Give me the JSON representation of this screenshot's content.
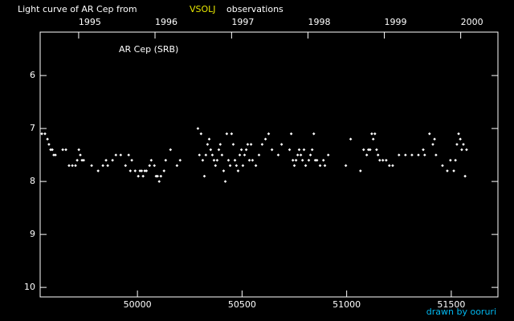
{
  "chart_data": {
    "type": "scatter",
    "title": "Light curve of AR Cep from",
    "title_source": "VSOLJ",
    "title_suffix": "observations",
    "annotation": "AR Cep (SRB)",
    "credit": "drawn by ooruri",
    "color": "#ffffff",
    "source_color": "#e8e800",
    "credit_color": "#00b8f0",
    "xlim": [
      49535,
      51723
    ],
    "xticks": [
      50000,
      50500,
      51000,
      51500
    ],
    "x2ticks": [
      {
        "value": 49719,
        "label": "1995"
      },
      {
        "value": 50084,
        "label": "1996"
      },
      {
        "value": 50450,
        "label": "1997"
      },
      {
        "value": 50815,
        "label": "1998"
      },
      {
        "value": 51180,
        "label": "1999"
      },
      {
        "value": 51545,
        "label": "2000"
      }
    ],
    "ylim": [
      10.18,
      5.18
    ],
    "yticks": [
      6,
      7,
      8,
      9,
      10
    ],
    "x": [
      49543,
      49558,
      49570,
      49577,
      49585,
      49593,
      49600,
      49608,
      49643,
      49658,
      49673,
      49689,
      49704,
      49712,
      49720,
      49727,
      49735,
      49743,
      49781,
      49812,
      49835,
      49850,
      49858,
      49881,
      49897,
      49920,
      49943,
      49958,
      49966,
      49973,
      49989,
      50004,
      50012,
      50020,
      50027,
      50035,
      50043,
      50058,
      50066,
      50081,
      50089,
      50096,
      50104,
      50112,
      50127,
      50135,
      50158,
      50189,
      50204,
      50289,
      50296,
      50304,
      50312,
      50320,
      50327,
      50335,
      50343,
      50350,
      50358,
      50366,
      50373,
      50381,
      50389,
      50396,
      50404,
      50412,
      50420,
      50427,
      50435,
      50443,
      50450,
      50458,
      50466,
      50473,
      50481,
      50489,
      50497,
      50504,
      50512,
      50520,
      50527,
      50535,
      50543,
      50550,
      50566,
      50581,
      50596,
      50612,
      50627,
      50643,
      50673,
      50689,
      50735,
      50727,
      50743,
      50750,
      50758,
      50766,
      50773,
      50781,
      50789,
      50796,
      50804,
      50819,
      50827,
      50835,
      50843,
      50850,
      50858,
      50873,
      50889,
      50896,
      50912,
      50996,
      51019,
      51066,
      51081,
      51096,
      51104,
      51112,
      51120,
      51127,
      51135,
      51143,
      51150,
      51158,
      51173,
      51189,
      51204,
      51220,
      51250,
      51281,
      51312,
      51343,
      51366,
      51373,
      51396,
      51412,
      51420,
      51427,
      51458,
      51481,
      51496,
      51512,
      51520,
      51527,
      51535,
      51543,
      51550,
      51558,
      51566,
      51573
    ],
    "values": [
      7.1,
      7.1,
      7.2,
      7.3,
      7.4,
      7.4,
      7.5,
      7.5,
      7.4,
      7.4,
      7.7,
      7.7,
      7.7,
      7.6,
      7.4,
      7.5,
      7.6,
      7.6,
      7.7,
      7.8,
      7.7,
      7.6,
      7.7,
      7.6,
      7.5,
      7.5,
      7.7,
      7.5,
      7.8,
      7.6,
      7.8,
      7.9,
      7.8,
      7.8,
      7.9,
      7.8,
      7.8,
      7.7,
      7.6,
      7.7,
      7.9,
      7.9,
      8.0,
      7.9,
      7.8,
      7.6,
      7.4,
      7.7,
      7.6,
      7.0,
      7.5,
      7.1,
      7.6,
      7.9,
      7.5,
      7.3,
      7.2,
      7.4,
      7.5,
      7.6,
      7.7,
      7.6,
      7.4,
      7.3,
      7.5,
      7.8,
      8.0,
      7.1,
      7.6,
      7.7,
      7.1,
      7.3,
      7.6,
      7.7,
      7.8,
      7.5,
      7.4,
      7.7,
      7.5,
      7.4,
      7.3,
      7.6,
      7.3,
      7.6,
      7.7,
      7.5,
      7.3,
      7.2,
      7.1,
      7.4,
      7.5,
      7.3,
      7.1,
      7.4,
      7.6,
      7.7,
      7.6,
      7.5,
      7.4,
      7.5,
      7.6,
      7.4,
      7.7,
      7.6,
      7.5,
      7.4,
      7.1,
      7.6,
      7.6,
      7.7,
      7.6,
      7.7,
      7.5,
      7.7,
      7.2,
      7.8,
      7.4,
      7.5,
      7.4,
      7.4,
      7.1,
      7.2,
      7.1,
      7.4,
      7.5,
      7.6,
      7.6,
      7.6,
      7.7,
      7.7,
      7.5,
      7.5,
      7.5,
      7.5,
      7.4,
      7.5,
      7.1,
      7.3,
      7.2,
      7.5,
      7.7,
      7.8,
      7.6,
      7.8,
      7.6,
      7.3,
      7.1,
      7.2,
      7.4,
      7.3,
      7.9,
      7.4
    ]
  }
}
